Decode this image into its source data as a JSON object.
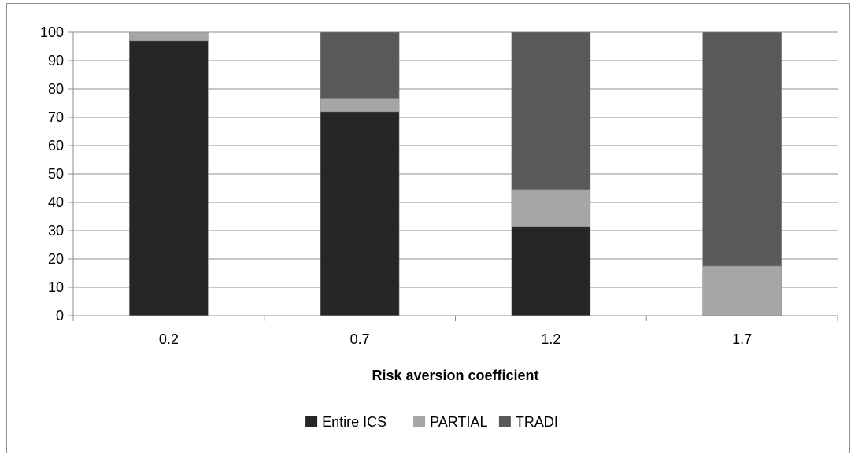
{
  "chart_data": {
    "type": "bar",
    "stacked": true,
    "title": "",
    "xlabel": "Risk aversion coefficient",
    "ylabel": "",
    "categories": [
      "0.2",
      "0.7",
      "1.2",
      "1.7"
    ],
    "ylim": [
      0,
      100
    ],
    "yticks": [
      0,
      10,
      20,
      30,
      40,
      50,
      60,
      70,
      80,
      90,
      100
    ],
    "grid": true,
    "legend_position": "bottom",
    "series": [
      {
        "name": "Entire ICS",
        "color": "#262626",
        "values": [
          97,
          72,
          31.5,
          0
        ]
      },
      {
        "name": "PARTIAL",
        "color": "#a6a6a6",
        "values": [
          3,
          4.5,
          13,
          17.5
        ]
      },
      {
        "name": "TRADI",
        "color": "#595959",
        "values": [
          0,
          23.5,
          55.5,
          82.5
        ]
      }
    ]
  }
}
